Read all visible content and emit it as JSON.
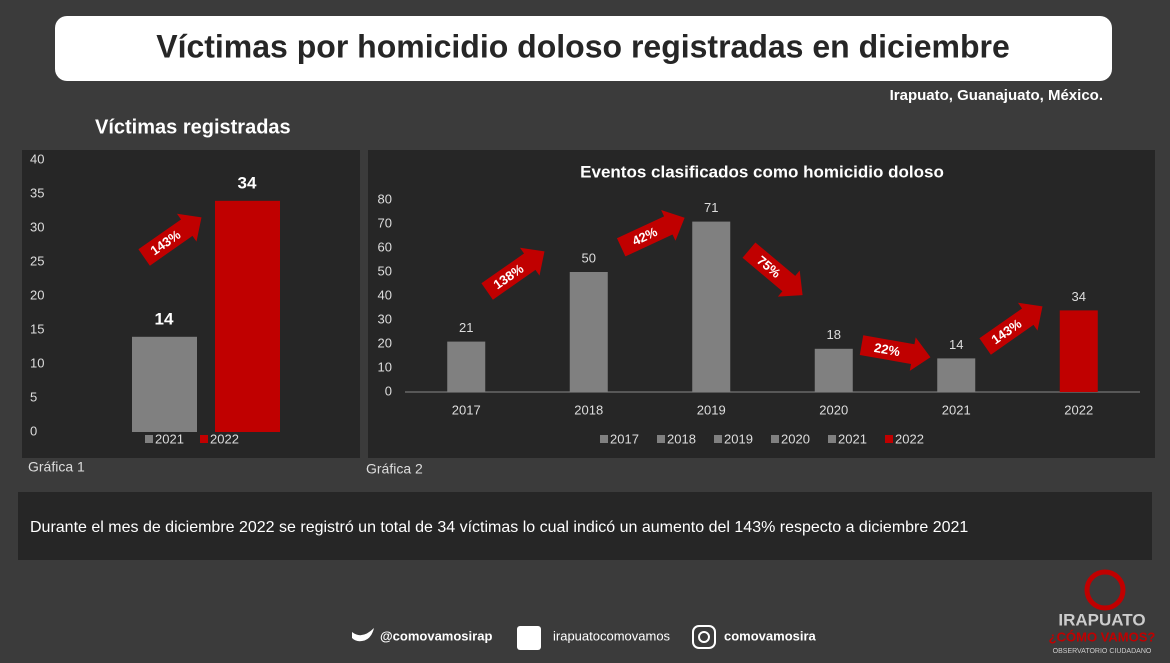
{
  "header": {
    "title": "Víctimas por homicidio doloso registradas en diciembre",
    "location": "Irapuato, Guanajuato, México."
  },
  "chart_data": [
    {
      "type": "bar",
      "title": "Víctimas registradas",
      "caption": "Gráfica 1",
      "series": [
        {
          "name": "2021",
          "color": "#808080",
          "values": [
            14
          ]
        },
        {
          "name": "2022",
          "color": "#c00000",
          "values": [
            34
          ]
        }
      ],
      "ylim": [
        0,
        40
      ],
      "yticks": [
        0,
        5,
        10,
        15,
        20,
        25,
        30,
        35,
        40
      ],
      "annotations": [
        "143%"
      ]
    },
    {
      "type": "bar",
      "title": "Eventos clasificados como homicidio doloso",
      "caption": "Gráfica 2",
      "categories": [
        "2017",
        "2018",
        "2019",
        "2020",
        "2021",
        "2022"
      ],
      "values": [
        21,
        50,
        71,
        18,
        14,
        34
      ],
      "colors": [
        "#808080",
        "#808080",
        "#808080",
        "#808080",
        "#808080",
        "#c00000"
      ],
      "ylim": [
        0,
        80
      ],
      "yticks": [
        0,
        10,
        20,
        30,
        40,
        50,
        60,
        70,
        80
      ],
      "annotations": [
        "138%",
        "42%",
        "75%",
        "22%",
        "143%"
      ]
    }
  ],
  "summary": "Durante el mes de diciembre 2022 se registró un total de 34 víctimas lo cual indicó un aumento del 143% respecto a diciembre 2021",
  "footer": {
    "twitter": "@comovamosirap",
    "facebook": "irapuatocomovamos",
    "instagram": "comovamosira"
  },
  "logo": {
    "name": "IRAPUATO",
    "tagline": "¿CÓMO VAMOS?",
    "subtitle": "OBSERVATORIO CIUDADANO"
  }
}
